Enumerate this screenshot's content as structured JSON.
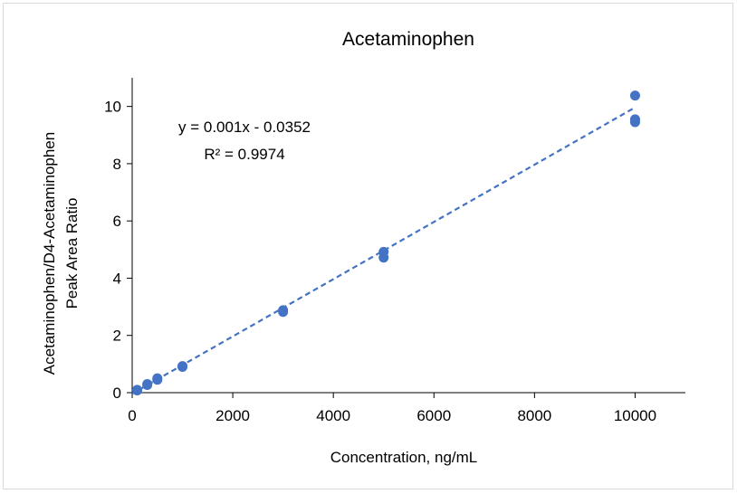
{
  "chart_data": {
    "type": "scatter",
    "title": "Acetaminophen",
    "xlabel": "Concentration, ng/mL",
    "ylabel_lines": [
      "Acetaminophen/D4-Acetaminophen",
      "Peak Area Ratio"
    ],
    "xlim": [
      0,
      11000
    ],
    "ylim": [
      0,
      11
    ],
    "x_ticks": [
      0,
      2000,
      4000,
      6000,
      8000,
      10000
    ],
    "x_tick_labels": [
      "0",
      "2000",
      "4000",
      "6000",
      "8000",
      "10000"
    ],
    "y_ticks": [
      0,
      2,
      4,
      6,
      8,
      10
    ],
    "y_tick_labels": [
      "0",
      "2",
      "4",
      "6",
      "8",
      "10"
    ],
    "grid": false,
    "legend": "none",
    "series": [
      {
        "color": "#4472C4",
        "points": [
          {
            "x": 100,
            "y": 0.08
          },
          {
            "x": 100,
            "y": 0.1
          },
          {
            "x": 300,
            "y": 0.27
          },
          {
            "x": 300,
            "y": 0.3
          },
          {
            "x": 500,
            "y": 0.45
          },
          {
            "x": 500,
            "y": 0.5
          },
          {
            "x": 1000,
            "y": 0.9
          },
          {
            "x": 1000,
            "y": 0.93
          },
          {
            "x": 3000,
            "y": 2.82
          },
          {
            "x": 3000,
            "y": 2.88
          },
          {
            "x": 5000,
            "y": 4.72
          },
          {
            "x": 5000,
            "y": 4.92
          },
          {
            "x": 10000,
            "y": 9.45
          },
          {
            "x": 10000,
            "y": 9.55
          },
          {
            "x": 10000,
            "y": 10.38
          }
        ]
      }
    ],
    "trendline": {
      "type": "linear",
      "slope": 0.001,
      "intercept": -0.0352,
      "x_range": [
        0,
        10000
      ],
      "color": "#4472C4",
      "style": "dashed"
    },
    "annotations": {
      "equation": "y = 0.001x - 0.0352",
      "r_squared": "R² = 0.9974"
    }
  }
}
